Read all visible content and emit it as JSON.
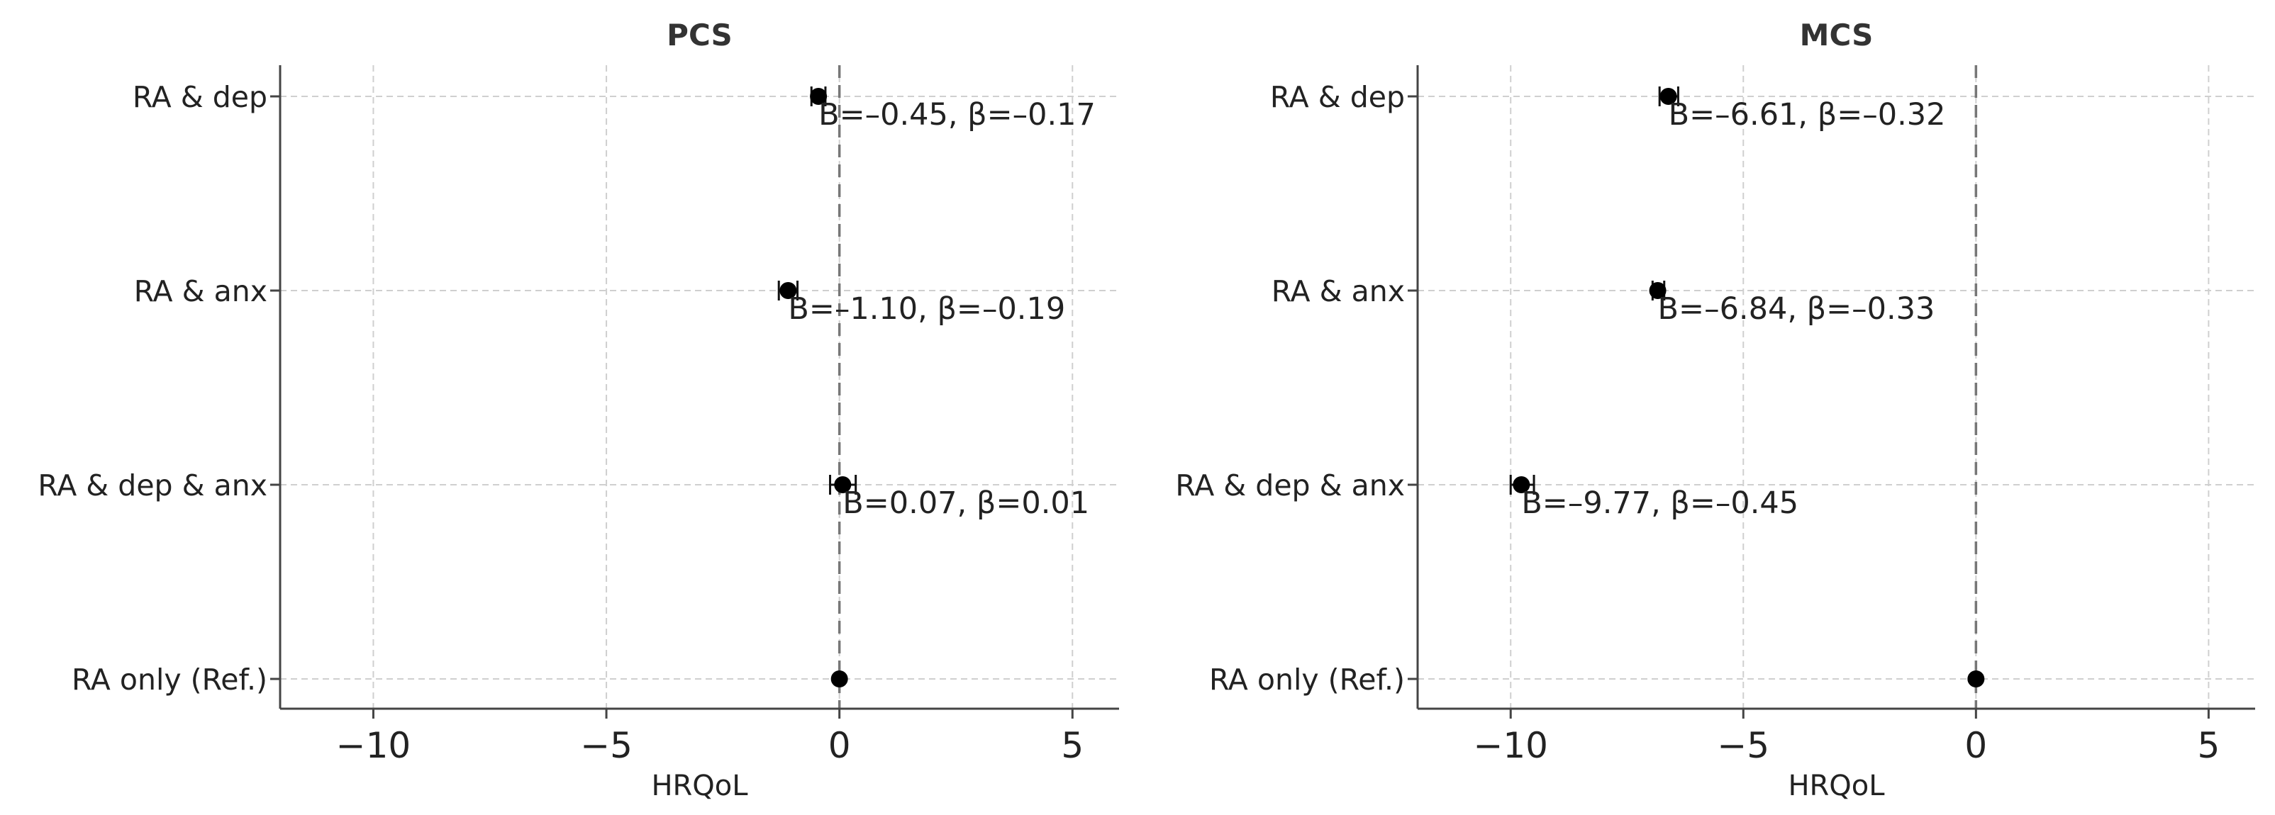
{
  "chart_data": [
    {
      "type": "scatter",
      "title": "PCS",
      "xlabel": "HRQoL",
      "ylabel": "",
      "xlim": [
        -12,
        6
      ],
      "xticks": [
        -10,
        -5,
        0,
        5
      ],
      "xtick_labels": [
        "−10",
        "−5",
        "0",
        "5"
      ],
      "grid": true,
      "reference_line_x": 0,
      "categories": [
        "RA & dep",
        "RA & anx",
        "RA & dep & anx",
        "RA only (Ref.)"
      ],
      "values": [
        -0.45,
        -1.1,
        0.07,
        0.0
      ],
      "ci_low": [
        -0.6,
        -1.3,
        -0.2,
        0.0
      ],
      "ci_high": [
        -0.3,
        -0.9,
        0.35,
        0.0
      ],
      "annotations": [
        "B=–0.45, β=–0.17",
        "B=–1.10, β=–0.19",
        "B=0.07, β=0.01",
        ""
      ]
    },
    {
      "type": "scatter",
      "title": "MCS",
      "xlabel": "HRQoL",
      "ylabel": "",
      "xlim": [
        -12,
        6
      ],
      "xticks": [
        -10,
        -5,
        0,
        5
      ],
      "xtick_labels": [
        "−10",
        "−5",
        "0",
        "5"
      ],
      "grid": true,
      "reference_line_x": 0,
      "categories": [
        "RA & dep",
        "RA & anx",
        "RA & dep & anx",
        "RA only (Ref.)"
      ],
      "values": [
        -6.61,
        -6.84,
        -9.77,
        0.0
      ],
      "ci_low": [
        -6.8,
        -6.95,
        -10.0,
        0.0
      ],
      "ci_high": [
        -6.4,
        -6.7,
        -9.5,
        0.0
      ],
      "annotations": [
        "B=–6.61, β=–0.32",
        "B=–6.84, β=–0.33",
        "B=–9.77, β=–0.45",
        ""
      ]
    }
  ]
}
